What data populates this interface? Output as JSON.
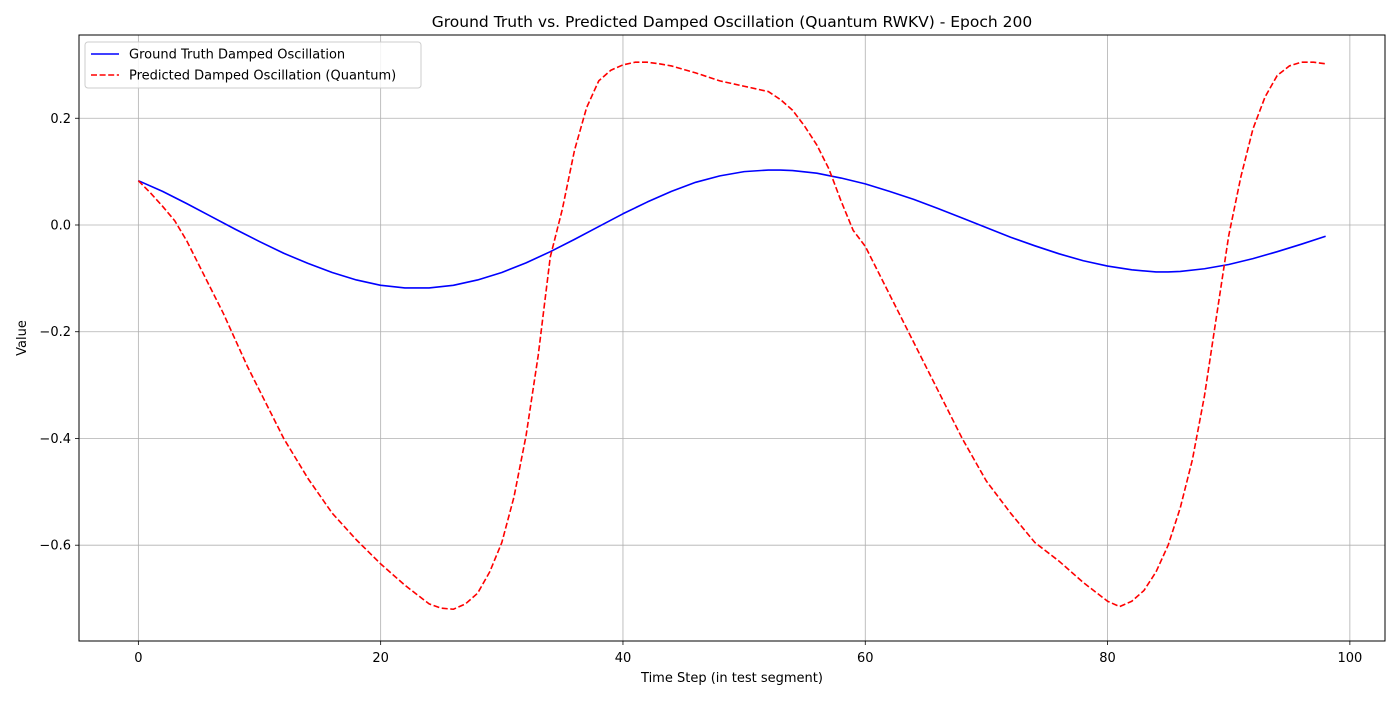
{
  "chart_data": {
    "type": "line",
    "title": "Ground Truth vs. Predicted Damped Oscillation (Quantum RWKV) - Epoch 200",
    "xlabel": "Time Step (in test segment)",
    "ylabel": "Value",
    "xlim": [
      -4.9,
      102.9
    ],
    "ylim": [
      -0.7795,
      0.356
    ],
    "xticks": [
      0,
      20,
      40,
      60,
      80,
      100
    ],
    "xtick_labels": [
      "0",
      "20",
      "40",
      "60",
      "80",
      "100"
    ],
    "yticks": [
      -0.6,
      -0.4,
      -0.2,
      0.0,
      0.2
    ],
    "ytick_labels": [
      "−0.6",
      "−0.4",
      "−0.2",
      "0.0",
      "0.2"
    ],
    "grid": true,
    "legend_position": "top-left",
    "colors": {
      "ground_truth": "#0000ff",
      "predicted": "#ff0000",
      "grid": "#b0b0b0",
      "legend_border": "#cccccc"
    },
    "series": [
      {
        "name": "Ground Truth Damped Oscillation",
        "style": "solid",
        "x": [
          0,
          2,
          4,
          6,
          8,
          10,
          12,
          14,
          16,
          18,
          20,
          22,
          24,
          26,
          28,
          30,
          32,
          34,
          36,
          38,
          40,
          42,
          44,
          46,
          48,
          50,
          52,
          53,
          54,
          56,
          58,
          60,
          62,
          64,
          66,
          68,
          70,
          72,
          74,
          76,
          78,
          80,
          82,
          84,
          85,
          86,
          88,
          90,
          92,
          94,
          96,
          98
        ],
        "y": [
          0.083,
          0.063,
          0.04,
          0.016,
          -0.008,
          -0.031,
          -0.053,
          -0.072,
          -0.089,
          -0.103,
          -0.113,
          -0.118,
          -0.118,
          -0.113,
          -0.103,
          -0.089,
          -0.071,
          -0.05,
          -0.027,
          -0.003,
          0.021,
          0.043,
          0.063,
          0.08,
          0.092,
          0.1,
          0.103,
          0.103,
          0.102,
          0.097,
          0.088,
          0.077,
          0.063,
          0.048,
          0.031,
          0.013,
          -0.005,
          -0.023,
          -0.039,
          -0.054,
          -0.067,
          -0.077,
          -0.084,
          -0.088,
          -0.088,
          -0.087,
          -0.082,
          -0.074,
          -0.063,
          -0.05,
          -0.036,
          -0.021
        ]
      },
      {
        "name": "Predicted Damped Oscillation (Quantum)",
        "style": "dashed",
        "x": [
          0,
          1,
          2,
          3,
          4,
          5,
          6,
          7,
          8,
          9,
          10,
          12,
          14,
          16,
          18,
          20,
          22,
          24,
          25,
          26,
          27,
          28,
          29,
          30,
          31,
          32,
          33,
          34,
          35,
          36,
          37,
          38,
          39,
          40,
          41,
          42,
          43,
          44,
          46,
          48,
          50,
          52,
          53,
          54,
          55,
          56,
          57,
          58,
          59,
          60,
          62,
          64,
          66,
          68,
          70,
          72,
          74,
          76,
          78,
          80,
          81,
          82,
          83,
          84,
          85,
          86,
          87,
          88,
          89,
          90,
          91,
          92,
          93,
          94,
          95,
          96,
          97,
          98
        ],
        "y": [
          0.083,
          0.06,
          0.035,
          0.008,
          -0.03,
          -0.075,
          -0.12,
          -0.165,
          -0.215,
          -0.265,
          -0.31,
          -0.4,
          -0.475,
          -0.54,
          -0.59,
          -0.635,
          -0.675,
          -0.71,
          -0.718,
          -0.72,
          -0.71,
          -0.69,
          -0.65,
          -0.595,
          -0.51,
          -0.395,
          -0.245,
          -0.06,
          0.03,
          0.14,
          0.22,
          0.27,
          0.29,
          0.3,
          0.305,
          0.305,
          0.302,
          0.298,
          0.285,
          0.27,
          0.26,
          0.25,
          0.235,
          0.215,
          0.185,
          0.15,
          0.105,
          0.045,
          -0.01,
          -0.04,
          -0.13,
          -0.22,
          -0.31,
          -0.4,
          -0.48,
          -0.54,
          -0.595,
          -0.63,
          -0.67,
          -0.705,
          -0.715,
          -0.705,
          -0.685,
          -0.65,
          -0.6,
          -0.53,
          -0.44,
          -0.32,
          -0.17,
          -0.02,
          0.09,
          0.18,
          0.24,
          0.28,
          0.298,
          0.305,
          0.305,
          0.302
        ]
      }
    ]
  }
}
